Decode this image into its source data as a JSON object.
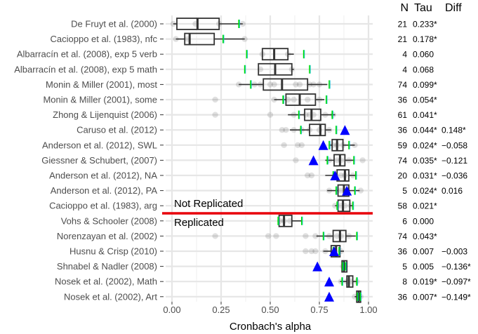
{
  "chart_data": {
    "type": "boxplot",
    "xlabel": "Cronbach's alpha",
    "xlim": [
      -0.03,
      1.02
    ],
    "xticks": [
      0.0,
      0.25,
      0.5,
      0.75,
      1.0
    ],
    "xtick_labels": [
      "0.00",
      "0.25",
      "0.50",
      "0.75",
      "1.00"
    ],
    "grid": true,
    "column_headers": {
      "n": "N",
      "tau": "Tau",
      "diff": "Diff"
    },
    "group_labels": {
      "top": "Not Replicated",
      "bottom": "Replicated"
    },
    "separator_after_index": 12,
    "separator_color": "#e8000b",
    "triangle_color": "#0000ff",
    "green_tick_color": "#00e000",
    "studies": [
      {
        "label": "De Fruyt et al. (2000)",
        "n": "21",
        "tau": "0.233*",
        "diff": "",
        "q1": 0.025,
        "median": 0.13,
        "q3": 0.24,
        "wlo": 0.007,
        "whi": 0.36,
        "ci": [
          0.34
        ],
        "original": null,
        "points": [
          0.007,
          0.12,
          0.24,
          0.36
        ]
      },
      {
        "label": "Cacioppo et al. (1983), nfc",
        "n": "21",
        "tau": "0.178*",
        "diff": "",
        "q1": 0.065,
        "median": 0.09,
        "q3": 0.215,
        "wlo": 0.02,
        "whi": 0.37,
        "ci": [
          0.26
        ],
        "original": null,
        "points": [
          0.02,
          0.08,
          0.37
        ]
      },
      {
        "label": "Albarracín et al. (2008), exp 5 verb",
        "n": "4",
        "tau": "0.060",
        "diff": "",
        "q1": 0.46,
        "median": 0.52,
        "q3": 0.59,
        "wlo": 0.46,
        "whi": 0.62,
        "ci": [
          0.38,
          0.67
        ],
        "original": null,
        "points": [
          0.46,
          0.59
        ]
      },
      {
        "label": "Albarracín et al. (2008), exp 5 math",
        "n": "4",
        "tau": "0.068",
        "diff": "",
        "q1": 0.44,
        "median": 0.525,
        "q3": 0.61,
        "wlo": 0.44,
        "whi": 0.62,
        "ci": [
          0.37,
          0.7
        ],
        "original": null,
        "points": [
          0.45,
          0.61
        ]
      },
      {
        "label": "Monin & Miller (2001), most",
        "n": "74",
        "tau": "0.099*",
        "diff": "",
        "q1": 0.465,
        "median": 0.56,
        "q3": 0.69,
        "wlo": 0.34,
        "whi": 0.79,
        "ci": [
          0.4,
          0.8
        ],
        "original": null,
        "points": [
          0.34,
          0.42,
          0.45,
          0.5,
          0.52,
          0.63,
          0.65,
          0.7,
          0.72,
          0.75
        ]
      },
      {
        "label": "Monin & Miller (2001), some",
        "n": "36",
        "tau": "0.054*",
        "diff": "",
        "q1": 0.58,
        "median": 0.65,
        "q3": 0.73,
        "wlo": 0.52,
        "whi": 0.775,
        "ci": [
          0.565,
          0.785
        ],
        "original": null,
        "points": [
          0.22,
          0.52,
          0.59,
          0.62,
          0.69,
          0.75
        ]
      },
      {
        "label": "Zhong & Lijenquist (2006)",
        "n": "61",
        "tau": "0.041*",
        "diff": "",
        "q1": 0.675,
        "median": 0.71,
        "q3": 0.757,
        "wlo": 0.59,
        "whi": 0.83,
        "ci": [
          0.645,
          0.815
        ],
        "original": null,
        "points": [
          0.22,
          0.5,
          0.62,
          0.68,
          0.7,
          0.72,
          0.78,
          0.82
        ]
      },
      {
        "label": "Caruso et al. (2012)",
        "n": "36",
        "tau": "0.044*",
        "diff": "0.148*",
        "q1": 0.7,
        "median": 0.755,
        "q3": 0.78,
        "wlo": 0.6,
        "whi": 0.81,
        "ci": [
          0.655,
          0.835
        ],
        "original": 0.88,
        "points": [
          0.56,
          0.58,
          0.62,
          0.66,
          0.7,
          0.75,
          0.8
        ]
      },
      {
        "label": "Anderson et al. (2012), SWL",
        "n": "59",
        "tau": "0.024*",
        "diff": "−0.058",
        "q1": 0.815,
        "median": 0.84,
        "q3": 0.87,
        "wlo": 0.8,
        "whi": 0.93,
        "ci": [
          0.8,
          0.9
        ],
        "original": 0.77,
        "points": [
          0.57,
          0.64,
          0.66,
          0.82,
          0.84,
          0.87,
          0.93
        ]
      },
      {
        "label": "Giessner & Schubert, (2007)",
        "n": "74",
        "tau": "0.035*",
        "diff": "−0.121",
        "q1": 0.825,
        "median": 0.855,
        "q3": 0.88,
        "wlo": 0.78,
        "whi": 0.93,
        "ci": [
          0.79,
          0.925
        ],
        "original": 0.72,
        "points": [
          0.63,
          0.8,
          0.84,
          0.86,
          0.9,
          0.97
        ]
      },
      {
        "label": "Anderson et al. (2012), NA",
        "n": "20",
        "tau": "0.031*",
        "diff": "−0.036",
        "q1": 0.84,
        "median": 0.88,
        "q3": 0.9,
        "wlo": 0.78,
        "whi": 0.94,
        "ci": [
          0.82,
          0.935
        ],
        "original": 0.83,
        "points": [
          0.69,
          0.71,
          0.83,
          0.86,
          0.88,
          0.92
        ]
      },
      {
        "label": "Anderson et al. (2012), PA",
        "n": "5",
        "tau": "0.024*",
        "diff": "0.016",
        "q1": 0.845,
        "median": 0.875,
        "q3": 0.9,
        "wlo": 0.79,
        "whi": 0.955,
        "ci": [
          0.835,
          0.93
        ],
        "original": 0.89,
        "points": [
          0.8,
          0.86,
          0.89,
          0.96
        ]
      },
      {
        "label": "Cacioppo et al. (1983), arg",
        "n": "58",
        "tau": "0.021*",
        "diff": "",
        "q1": 0.845,
        "median": 0.87,
        "q3": 0.905,
        "wlo": 0.83,
        "whi": 0.92,
        "ci": [
          0.84,
          0.92
        ],
        "original": null,
        "points": [
          0.83,
          0.86,
          0.88,
          0.91
        ]
      },
      {
        "label": "Vohs & Schooler (2008)",
        "n": "6",
        "tau": "0.000",
        "diff": "",
        "q1": 0.545,
        "median": 0.57,
        "q3": 0.61,
        "wlo": 0.54,
        "whi": 0.66,
        "ci": [
          0.54,
          0.66
        ],
        "original": null,
        "points": [
          0.55,
          0.57,
          0.6
        ]
      },
      {
        "label": "Norenzayan et al. (2002)",
        "n": "74",
        "tau": "0.043*",
        "diff": "",
        "q1": 0.82,
        "median": 0.855,
        "q3": 0.885,
        "wlo": 0.735,
        "whi": 0.935,
        "ci": [
          0.77,
          0.94
        ],
        "original": null,
        "points": [
          0.22,
          0.49,
          0.53,
          0.68,
          0.73,
          0.8,
          0.84,
          0.86,
          0.9
        ]
      },
      {
        "label": "Husnu & Crisp (2010)",
        "n": "36",
        "tau": "0.007",
        "diff": "−0.003",
        "q1": 0.81,
        "median": 0.835,
        "q3": 0.855,
        "wlo": 0.77,
        "whi": 0.875,
        "ci": [
          0.82,
          0.85
        ],
        "original": 0.825,
        "points": [
          0.68,
          0.71,
          0.73,
          0.78,
          0.82,
          0.86
        ]
      },
      {
        "label": "Shnabel & Nadler (2008)",
        "n": "5",
        "tau": "0.005",
        "diff": "−0.136*",
        "q1": 0.865,
        "median": 0.875,
        "q3": 0.89,
        "wlo": 0.865,
        "whi": 0.89,
        "ci": [
          0.868,
          0.882
        ],
        "original": 0.74,
        "points": [
          0.87,
          0.88
        ]
      },
      {
        "label": "Nosek et al. (2002), Math",
        "n": "8",
        "tau": "0.019*",
        "diff": "−0.097*",
        "q1": 0.89,
        "median": 0.9,
        "q3": 0.92,
        "wlo": 0.855,
        "whi": 0.945,
        "ci": [
          0.865,
          0.94
        ],
        "original": 0.8,
        "points": [
          0.86,
          0.89,
          0.91,
          0.94
        ]
      },
      {
        "label": "Nosek et al. (2002), Art",
        "n": "36",
        "tau": "0.007*",
        "diff": "−0.149*",
        "q1": 0.94,
        "median": 0.95,
        "q3": 0.96,
        "wlo": 0.93,
        "whi": 0.965,
        "ci": [
          0.943,
          0.958
        ],
        "original": 0.8,
        "points": [
          0.93,
          0.95,
          0.96
        ]
      }
    ]
  }
}
